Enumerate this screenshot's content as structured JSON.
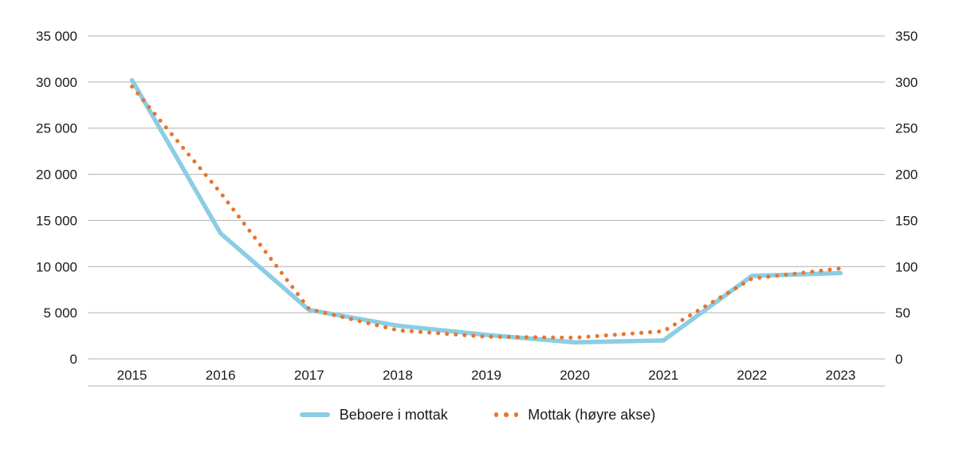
{
  "figure": {
    "background": "#ffffff",
    "text_color": "#1a1a1a",
    "grid_color": "#b0b0b0"
  },
  "chart_data": {
    "type": "line",
    "categories": [
      "2015",
      "2016",
      "2017",
      "2018",
      "2019",
      "2020",
      "2021",
      "2022",
      "2023"
    ],
    "series": [
      {
        "name": "Beboere i mottak",
        "axis": "left",
        "style": "solid",
        "color": "#8CCDE4",
        "values": [
          30200,
          13600,
          5300,
          3600,
          2600,
          1800,
          2000,
          9000,
          9300
        ]
      },
      {
        "name": "Mottak (høyre akse)",
        "axis": "right",
        "style": "dotted",
        "color": "#E8752C",
        "values": [
          295,
          180,
          54,
          31,
          24,
          23,
          30,
          87,
          98
        ]
      }
    ],
    "left_axis": {
      "min": 0,
      "max": 35000,
      "step": 5000,
      "tick_labels": [
        "0",
        "5 000",
        "10 000",
        "15 000",
        "20 000",
        "25 000",
        "30 000",
        "35 000"
      ]
    },
    "right_axis": {
      "min": 0,
      "max": 350,
      "step": 50,
      "tick_labels": [
        "0",
        "50",
        "100",
        "150",
        "200",
        "250",
        "300",
        "350"
      ]
    },
    "grid": true,
    "legend_position": "bottom"
  }
}
